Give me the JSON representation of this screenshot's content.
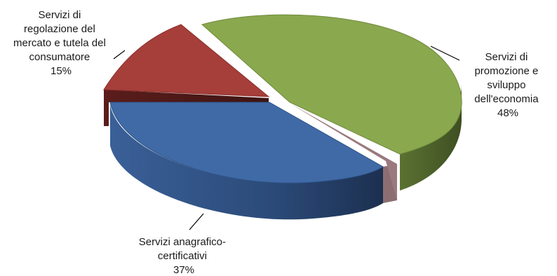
{
  "chart_data": {
    "type": "pie",
    "style": "3d-exploded",
    "slices": [
      {
        "label_lines": [
          "Servizi di",
          "promozione e",
          "sviluppo",
          "dell'economia"
        ],
        "value": 48,
        "value_label": "48%",
        "color": "#8aa84e",
        "side_color": "#4a5c29"
      },
      {
        "label_lines": [
          "Servizi anagrafico-",
          "certificativi"
        ],
        "value": 37,
        "value_label": "37%",
        "color": "#3f6aa6",
        "side_color": "#2a4a78"
      },
      {
        "label_lines": [
          "Servizi di",
          "regolazione del",
          "mercato e tutela del",
          "consumatore"
        ],
        "value": 15,
        "value_label": "15%",
        "color": "#a63e3a",
        "side_color": "#6e2623"
      }
    ]
  }
}
